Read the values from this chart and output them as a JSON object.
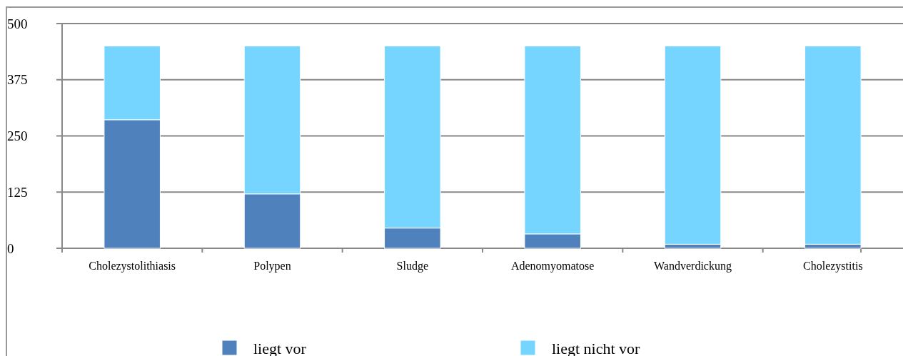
{
  "chart_data": {
    "type": "bar",
    "stacked": true,
    "categories": [
      "Cholezystolithiasis",
      "Polypen",
      "Sludge",
      "Adenomyomatose",
      "Wandverdickung",
      "Cholezystitis"
    ],
    "series": [
      {
        "name": "liegt vor",
        "color": "#4f81bd",
        "values": [
          286,
          121,
          45,
          32,
          9,
          9
        ]
      },
      {
        "name": "liegt nicht vor",
        "color": "#75d5ff",
        "values": [
          164,
          329,
          405,
          418,
          441,
          441
        ]
      }
    ],
    "ylim": [
      0,
      500
    ],
    "yticks": [
      0,
      125,
      250,
      375,
      500
    ],
    "grid": "y",
    "legend": "bottom"
  }
}
